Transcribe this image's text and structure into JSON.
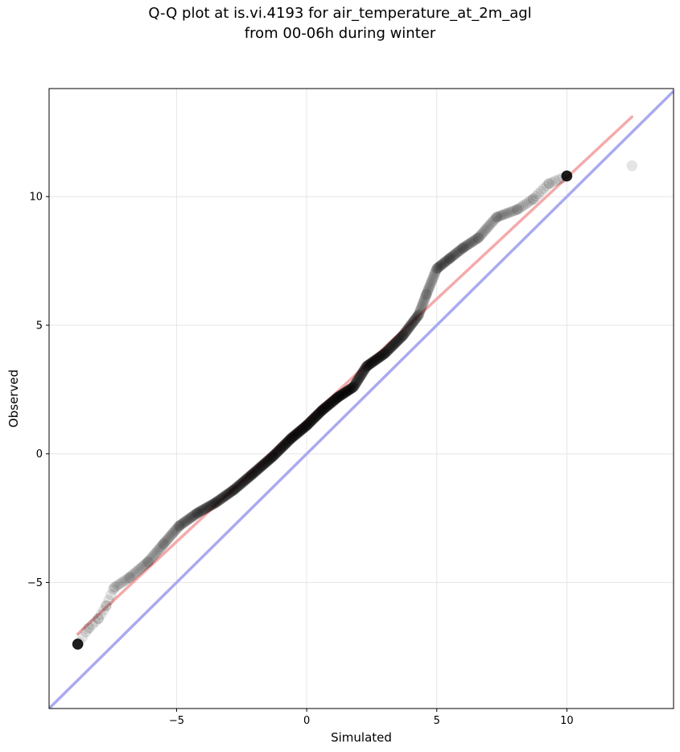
{
  "chart_data": {
    "type": "scatter",
    "title": "Q-Q plot at is.vi.4193 for air_temperature_at_2m_agl",
    "subtitle": "from 00-06h during winter",
    "xlabel": "Simulated",
    "ylabel": "Observed",
    "xlim": [
      -9.9,
      14.1
    ],
    "ylim": [
      -9.9,
      14.2
    ],
    "x_ticks": [
      -5,
      0,
      5,
      10
    ],
    "y_ticks": [
      -5,
      0,
      5,
      10
    ],
    "x_tick_labels": [
      "−5",
      "0",
      "5",
      "10"
    ],
    "y_tick_labels": [
      "−5",
      "0",
      "5",
      "10"
    ],
    "grid": true,
    "point_color": "#000000",
    "identity_line": {
      "color": "#aaaaf0",
      "from": [
        -9.9,
        -9.9
      ],
      "to": [
        14.1,
        14.1
      ]
    },
    "fit_line": {
      "color": "#f4aaaa",
      "from": [
        -8.8,
        -7.0
      ],
      "to": [
        12.5,
        13.1
      ]
    },
    "anchors": [
      [
        -8.8,
        -7.4
      ],
      [
        -8.4,
        -6.8
      ],
      [
        -8.0,
        -6.4
      ],
      [
        -7.7,
        -5.9
      ],
      [
        -7.4,
        -5.2
      ],
      [
        -6.8,
        -4.8
      ],
      [
        -6.1,
        -4.2
      ],
      [
        -5.5,
        -3.5
      ],
      [
        -4.9,
        -2.8
      ],
      [
        -4.2,
        -2.3
      ],
      [
        -3.5,
        -1.9
      ],
      [
        -2.8,
        -1.4
      ],
      [
        -2.1,
        -0.8
      ],
      [
        -1.3,
        -0.1
      ],
      [
        -0.6,
        0.6
      ],
      [
        0.0,
        1.1
      ],
      [
        0.6,
        1.7
      ],
      [
        1.2,
        2.2
      ],
      [
        1.8,
        2.6
      ],
      [
        2.3,
        3.4
      ],
      [
        3.0,
        3.9
      ],
      [
        3.7,
        4.6
      ],
      [
        4.3,
        5.4
      ],
      [
        4.6,
        6.2
      ],
      [
        5.0,
        7.2
      ],
      [
        5.5,
        7.6
      ],
      [
        6.0,
        8.0
      ],
      [
        6.6,
        8.4
      ],
      [
        7.3,
        9.2
      ],
      [
        8.1,
        9.5
      ],
      [
        8.7,
        9.9
      ],
      [
        9.3,
        10.5
      ],
      [
        10.0,
        10.8
      ],
      [
        12.5,
        11.2
      ]
    ],
    "n_points": 800
  }
}
